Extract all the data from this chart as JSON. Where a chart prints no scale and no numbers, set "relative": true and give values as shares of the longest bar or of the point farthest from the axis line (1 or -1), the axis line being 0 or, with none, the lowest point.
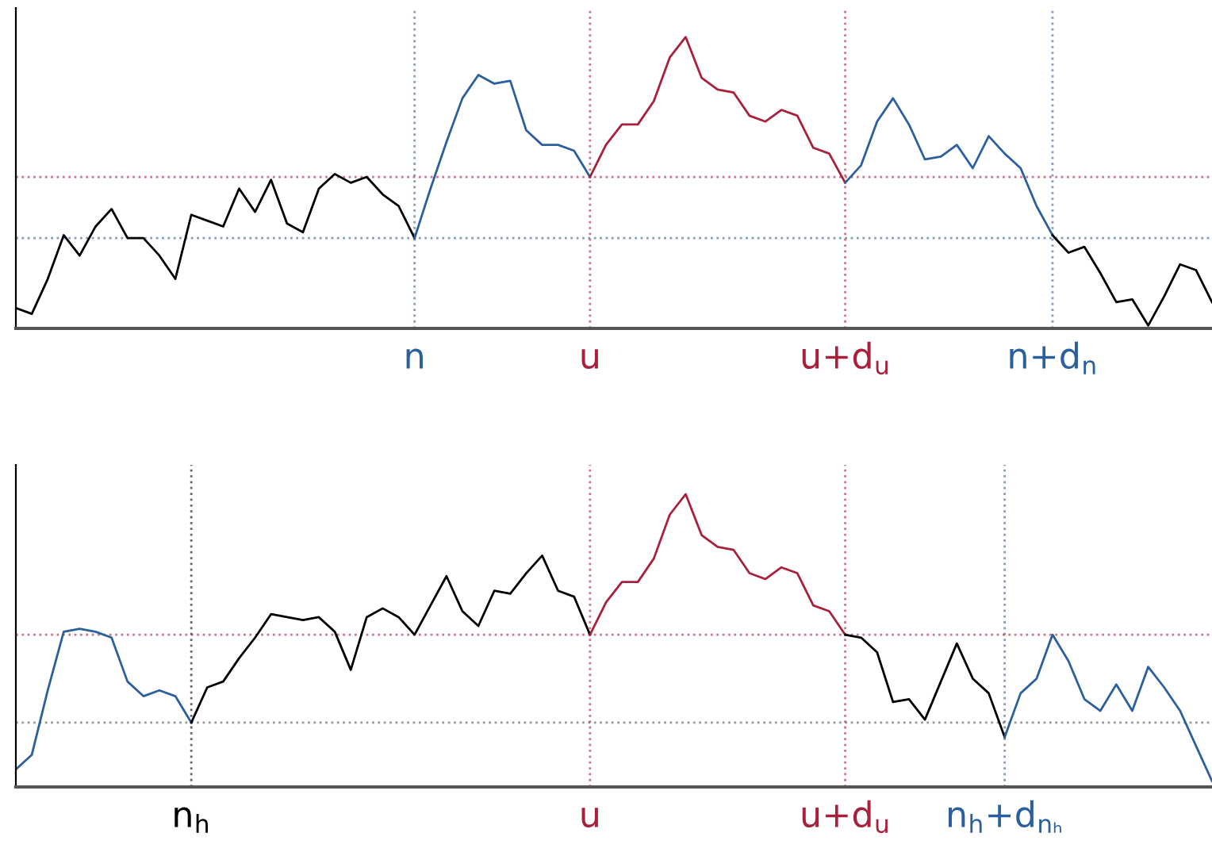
{
  "chart_data": [
    {
      "type": "line",
      "relative": true,
      "categories": [
        null,
        null,
        null,
        null,
        null,
        null,
        null,
        null,
        null,
        null,
        null,
        null,
        null,
        null,
        null,
        null,
        null,
        null,
        null,
        null,
        null,
        null,
        null,
        null,
        null,
        "n",
        null,
        null,
        null,
        null,
        null,
        null,
        null,
        null,
        null,
        null,
        "u",
        null,
        null,
        null,
        null,
        null,
        null,
        null,
        null,
        null,
        null,
        null,
        null,
        null,
        null,
        null,
        "u+d$_{u}$",
        null,
        null,
        null,
        null,
        null,
        null,
        null,
        null,
        null,
        null,
        null,
        null,
        "n+d$_{n}$",
        null,
        null,
        null,
        null,
        null,
        null,
        null,
        null,
        null,
        null
      ],
      "series": [
        {
          "color": "#000000",
          "values": [
            0.07,
            0.05,
            0.17,
            0.32,
            0.25,
            0.35,
            0.41,
            0.31,
            0.31,
            0.25,
            0.17,
            0.39,
            0.37,
            0.35,
            0.48,
            0.4,
            0.51,
            0.36,
            0.33,
            0.48,
            0.53,
            0.5,
            0.52,
            0.46,
            0.42,
            0.31,
            null,
            null,
            null,
            null,
            null,
            null,
            null,
            null,
            null,
            null,
            null,
            null,
            null,
            null,
            null,
            null,
            null,
            null,
            null,
            null,
            null,
            null,
            null,
            null,
            null,
            null,
            null,
            null,
            null,
            null,
            null,
            null,
            null,
            null,
            null,
            null,
            null,
            null,
            null,
            null,
            null,
            null,
            null,
            null,
            null,
            null,
            null,
            null,
            null,
            null
          ]
        },
        {
          "color": "#2c5f9e",
          "values": [
            null,
            null,
            null,
            null,
            null,
            null,
            null,
            null,
            null,
            null,
            null,
            null,
            null,
            null,
            null,
            null,
            null,
            null,
            null,
            null,
            null,
            null,
            null,
            null,
            null,
            0.31,
            0.48,
            0.64,
            0.79,
            0.87,
            0.84,
            0.85,
            0.68,
            0.63,
            0.63,
            0.61,
            0.52,
            null,
            null,
            null,
            null,
            null,
            null,
            null,
            null,
            null,
            null,
            null,
            null,
            null,
            null,
            null,
            null,
            null,
            null,
            null,
            null,
            null,
            null,
            null,
            null,
            null,
            null,
            null,
            null,
            null,
            null,
            null,
            null,
            null,
            null,
            null,
            null,
            null,
            null,
            null
          ]
        },
        {
          "color": "#a8203c",
          "values": [
            null,
            null,
            null,
            null,
            null,
            null,
            null,
            null,
            null,
            null,
            null,
            null,
            null,
            null,
            null,
            null,
            null,
            null,
            null,
            null,
            null,
            null,
            null,
            null,
            null,
            null,
            null,
            null,
            null,
            null,
            null,
            null,
            null,
            null,
            null,
            null,
            0.52,
            0.63,
            0.7,
            0.7,
            0.78,
            0.93,
            1.0,
            0.86,
            0.82,
            0.81,
            0.73,
            0.71,
            0.75,
            0.73,
            0.62,
            0.6,
            0.5,
            null,
            null,
            null,
            null,
            null,
            null,
            null,
            null,
            null,
            null,
            null,
            null,
            null,
            null,
            null,
            null,
            null,
            null,
            null,
            null,
            null,
            null,
            null
          ]
        },
        {
          "color": "#2c5f9e",
          "values": [
            null,
            null,
            null,
            null,
            null,
            null,
            null,
            null,
            null,
            null,
            null,
            null,
            null,
            null,
            null,
            null,
            null,
            null,
            null,
            null,
            null,
            null,
            null,
            null,
            null,
            null,
            null,
            null,
            null,
            null,
            null,
            null,
            null,
            null,
            null,
            null,
            null,
            null,
            null,
            null,
            null,
            null,
            null,
            null,
            null,
            null,
            null,
            null,
            null,
            null,
            null,
            null,
            0.5,
            0.56,
            0.71,
            0.79,
            0.7,
            0.58,
            0.59,
            0.63,
            0.55,
            0.66,
            0.6,
            0.55,
            0.42,
            0.32,
            null,
            null,
            null,
            null,
            null,
            null,
            null,
            null,
            null,
            null
          ]
        },
        {
          "color": "#000000",
          "values": [
            null,
            null,
            null,
            null,
            null,
            null,
            null,
            null,
            null,
            null,
            null,
            null,
            null,
            null,
            null,
            null,
            null,
            null,
            null,
            null,
            null,
            null,
            null,
            null,
            null,
            null,
            null,
            null,
            null,
            null,
            null,
            null,
            null,
            null,
            null,
            null,
            null,
            null,
            null,
            null,
            null,
            null,
            null,
            null,
            null,
            null,
            null,
            null,
            null,
            null,
            null,
            null,
            null,
            null,
            null,
            null,
            null,
            null,
            null,
            null,
            null,
            null,
            null,
            null,
            null,
            0.32,
            0.26,
            0.28,
            0.19,
            0.09,
            0.1,
            0.01,
            0.11,
            0.22,
            0.2,
            0.09
          ]
        }
      ],
      "ref_lines": [
        {
          "axis": "x",
          "value": "n",
          "color": "#2c5f9e",
          "line_style": "dotted"
        },
        {
          "axis": "x",
          "value": "u",
          "color": "#a8203c",
          "line_style": "dotted"
        },
        {
          "axis": "x",
          "value": "u+d$_{u}$",
          "color": "#a8203c",
          "line_style": "dotted"
        },
        {
          "axis": "x",
          "value": "n+d$_{n}$",
          "color": "#2c5f9e",
          "line_style": "dotted"
        },
        {
          "axis": "y",
          "value": 0.52,
          "color": "#a8203c",
          "line_style": "dotted"
        },
        {
          "axis": "y",
          "value": 0.31,
          "color": "#2c5f9e",
          "line_style": "dotted"
        }
      ]
    },
    {
      "type": "line",
      "relative": true,
      "categories": [
        null,
        null,
        null,
        null,
        null,
        null,
        null,
        null,
        null,
        null,
        null,
        "n$_{h}$",
        null,
        null,
        null,
        null,
        null,
        null,
        null,
        null,
        null,
        null,
        null,
        null,
        null,
        null,
        null,
        null,
        null,
        null,
        null,
        null,
        null,
        null,
        null,
        null,
        "u",
        null,
        null,
        null,
        null,
        null,
        null,
        null,
        null,
        null,
        null,
        null,
        null,
        null,
        null,
        null,
        "u+d$_{u}$",
        null,
        null,
        null,
        null,
        null,
        null,
        null,
        null,
        null,
        "n$_{h}$+d$_{nₕ}$",
        null,
        null,
        null,
        null,
        null,
        null,
        null,
        null,
        null,
        null,
        null,
        null,
        null
      ],
      "series": [
        {
          "color": "#2c5f9e",
          "values": [
            0.06,
            0.11,
            0.33,
            0.53,
            0.54,
            0.53,
            0.51,
            0.36,
            0.31,
            0.33,
            0.31,
            0.22,
            null,
            null,
            null,
            null,
            null,
            null,
            null,
            null,
            null,
            null,
            null,
            null,
            null,
            null,
            null,
            null,
            null,
            null,
            null,
            null,
            null,
            null,
            null,
            null,
            null,
            null,
            null,
            null,
            null,
            null,
            null,
            null,
            null,
            null,
            null,
            null,
            null,
            null,
            null,
            null,
            null,
            null,
            null,
            null,
            null,
            null,
            null,
            null,
            null,
            null,
            null,
            null,
            null,
            null,
            null,
            null,
            null,
            null,
            null,
            null,
            null,
            null,
            null,
            null
          ]
        },
        {
          "color": "#000000",
          "values": [
            null,
            null,
            null,
            null,
            null,
            null,
            null,
            null,
            null,
            null,
            null,
            0.22,
            0.34,
            0.36,
            0.44,
            0.51,
            0.59,
            0.58,
            0.57,
            0.58,
            0.53,
            0.4,
            0.58,
            0.61,
            0.58,
            0.52,
            0.62,
            0.72,
            0.6,
            0.55,
            0.67,
            0.66,
            0.73,
            0.79,
            0.67,
            0.65,
            0.52,
            null,
            null,
            null,
            null,
            null,
            null,
            null,
            null,
            null,
            null,
            null,
            null,
            null,
            null,
            null,
            null,
            null,
            null,
            null,
            null,
            null,
            null,
            null,
            null,
            null,
            null,
            null,
            null,
            null,
            null,
            null,
            null,
            null,
            null,
            null,
            null,
            null,
            null,
            null
          ]
        },
        {
          "color": "#a8203c",
          "values": [
            null,
            null,
            null,
            null,
            null,
            null,
            null,
            null,
            null,
            null,
            null,
            null,
            null,
            null,
            null,
            null,
            null,
            null,
            null,
            null,
            null,
            null,
            null,
            null,
            null,
            null,
            null,
            null,
            null,
            null,
            null,
            null,
            null,
            null,
            null,
            null,
            0.52,
            0.63,
            0.7,
            0.7,
            0.78,
            0.93,
            1.0,
            0.86,
            0.82,
            0.81,
            0.73,
            0.71,
            0.75,
            0.73,
            0.62,
            0.6,
            0.52,
            null,
            null,
            null,
            null,
            null,
            null,
            null,
            null,
            null,
            null,
            null,
            null,
            null,
            null,
            null,
            null,
            null,
            null,
            null,
            null,
            null,
            null,
            null
          ]
        },
        {
          "color": "#000000",
          "values": [
            null,
            null,
            null,
            null,
            null,
            null,
            null,
            null,
            null,
            null,
            null,
            null,
            null,
            null,
            null,
            null,
            null,
            null,
            null,
            null,
            null,
            null,
            null,
            null,
            null,
            null,
            null,
            null,
            null,
            null,
            null,
            null,
            null,
            null,
            null,
            null,
            null,
            null,
            null,
            null,
            null,
            null,
            null,
            null,
            null,
            null,
            null,
            null,
            null,
            null,
            null,
            null,
            0.52,
            0.51,
            0.46,
            0.29,
            0.3,
            0.23,
            0.36,
            0.49,
            0.37,
            0.32,
            0.17,
            null,
            null,
            null,
            null,
            null,
            null,
            null,
            null,
            null,
            null,
            null,
            null,
            null
          ]
        },
        {
          "color": "#2c5f9e",
          "values": [
            null,
            null,
            null,
            null,
            null,
            null,
            null,
            null,
            null,
            null,
            null,
            null,
            null,
            null,
            null,
            null,
            null,
            null,
            null,
            null,
            null,
            null,
            null,
            null,
            null,
            null,
            null,
            null,
            null,
            null,
            null,
            null,
            null,
            null,
            null,
            null,
            null,
            null,
            null,
            null,
            null,
            null,
            null,
            null,
            null,
            null,
            null,
            null,
            null,
            null,
            null,
            null,
            null,
            null,
            null,
            null,
            null,
            null,
            null,
            null,
            null,
            null,
            0.17,
            0.32,
            0.37,
            0.52,
            0.43,
            0.3,
            0.26,
            0.35,
            0.26,
            0.41,
            0.34,
            0.26,
            0.14,
            0.02
          ]
        }
      ],
      "ref_lines": [
        {
          "axis": "x",
          "value": "n$_{h}$",
          "color": "#000000",
          "line_style": "dotted"
        },
        {
          "axis": "x",
          "value": "u",
          "color": "#a8203c",
          "line_style": "dotted"
        },
        {
          "axis": "x",
          "value": "u+d$_{u}$",
          "color": "#a8203c",
          "line_style": "dotted"
        },
        {
          "axis": "x",
          "value": "n$_{h}$+d$_{nₕ}$",
          "color": "#2c5f9e",
          "line_style": "dotted"
        },
        {
          "axis": "y",
          "value": 0.52,
          "color": "#a8203c",
          "line_style": "dotted"
        },
        {
          "axis": "y",
          "value": 0.22,
          "color": "#555555",
          "line_style": "dotted"
        }
      ]
    }
  ]
}
